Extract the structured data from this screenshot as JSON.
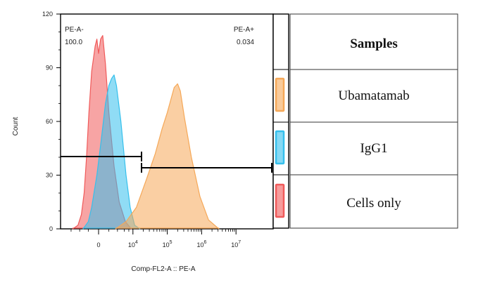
{
  "chart_data": {
    "type": "histogram",
    "xlabel": "Comp-FL2-A :: PE-A",
    "ylabel": "Count",
    "ylim": [
      0,
      120
    ],
    "y_ticks": [
      0,
      30,
      60,
      90,
      120
    ],
    "x_scale": "biexponential",
    "x_ticks": [
      {
        "value": 0,
        "base": "0",
        "exp": ""
      },
      {
        "value": 10000,
        "base": "10",
        "exp": "4"
      },
      {
        "value": 100000,
        "base": "10",
        "exp": "5"
      },
      {
        "value": 1000000,
        "base": "10",
        "exp": "6"
      },
      {
        "value": 10000000,
        "base": "10",
        "exp": "7"
      }
    ],
    "gates": [
      {
        "name": "PE-A-",
        "percent": "100.0",
        "position": "top-left"
      },
      {
        "name": "PE-A+",
        "percent": "0.034",
        "position": "top-right"
      }
    ],
    "series": [
      {
        "name": "Cells only",
        "color": "#f05a5a",
        "points": [
          [
            -0.75,
            0
          ],
          [
            -0.6,
            2
          ],
          [
            -0.5,
            8
          ],
          [
            -0.42,
            20
          ],
          [
            -0.35,
            40
          ],
          [
            -0.28,
            65
          ],
          [
            -0.2,
            88
          ],
          [
            -0.1,
            102
          ],
          [
            -0.05,
            106
          ],
          [
            0.0,
            98
          ],
          [
            0.06,
            106
          ],
          [
            0.12,
            108
          ],
          [
            0.2,
            92
          ],
          [
            0.3,
            65
          ],
          [
            0.45,
            35
          ],
          [
            0.6,
            15
          ],
          [
            0.78,
            4
          ],
          [
            0.95,
            0
          ]
        ]
      },
      {
        "name": "IgG1",
        "color": "#35c0ec",
        "points": [
          [
            -0.45,
            0
          ],
          [
            -0.3,
            4
          ],
          [
            -0.2,
            12
          ],
          [
            -0.05,
            30
          ],
          [
            0.08,
            50
          ],
          [
            0.2,
            70
          ],
          [
            0.3,
            80
          ],
          [
            0.38,
            84
          ],
          [
            0.45,
            86
          ],
          [
            0.52,
            80
          ],
          [
            0.65,
            60
          ],
          [
            0.8,
            30
          ],
          [
            0.92,
            12
          ],
          [
            1.05,
            2
          ],
          [
            1.2,
            0
          ]
        ]
      },
      {
        "name": "Ubamatamab",
        "color": "#f5a858",
        "points": [
          [
            0.5,
            0
          ],
          [
            0.8,
            4
          ],
          [
            1.1,
            12
          ],
          [
            1.4,
            28
          ],
          [
            1.65,
            42
          ],
          [
            1.85,
            56
          ],
          [
            2.0,
            65
          ],
          [
            2.1,
            72
          ],
          [
            2.2,
            79
          ],
          [
            2.3,
            81
          ],
          [
            2.38,
            77
          ],
          [
            2.5,
            62
          ],
          [
            2.7,
            40
          ],
          [
            2.95,
            18
          ],
          [
            3.2,
            5
          ],
          [
            3.5,
            0
          ]
        ]
      }
    ],
    "legend": {
      "title": "Samples",
      "entries": [
        {
          "label": "Ubamatamab",
          "color": "#f5a858"
        },
        {
          "label": "IgG1",
          "color": "#35c0ec"
        },
        {
          "label": "Cells only",
          "color": "#f05a5a"
        }
      ]
    }
  }
}
